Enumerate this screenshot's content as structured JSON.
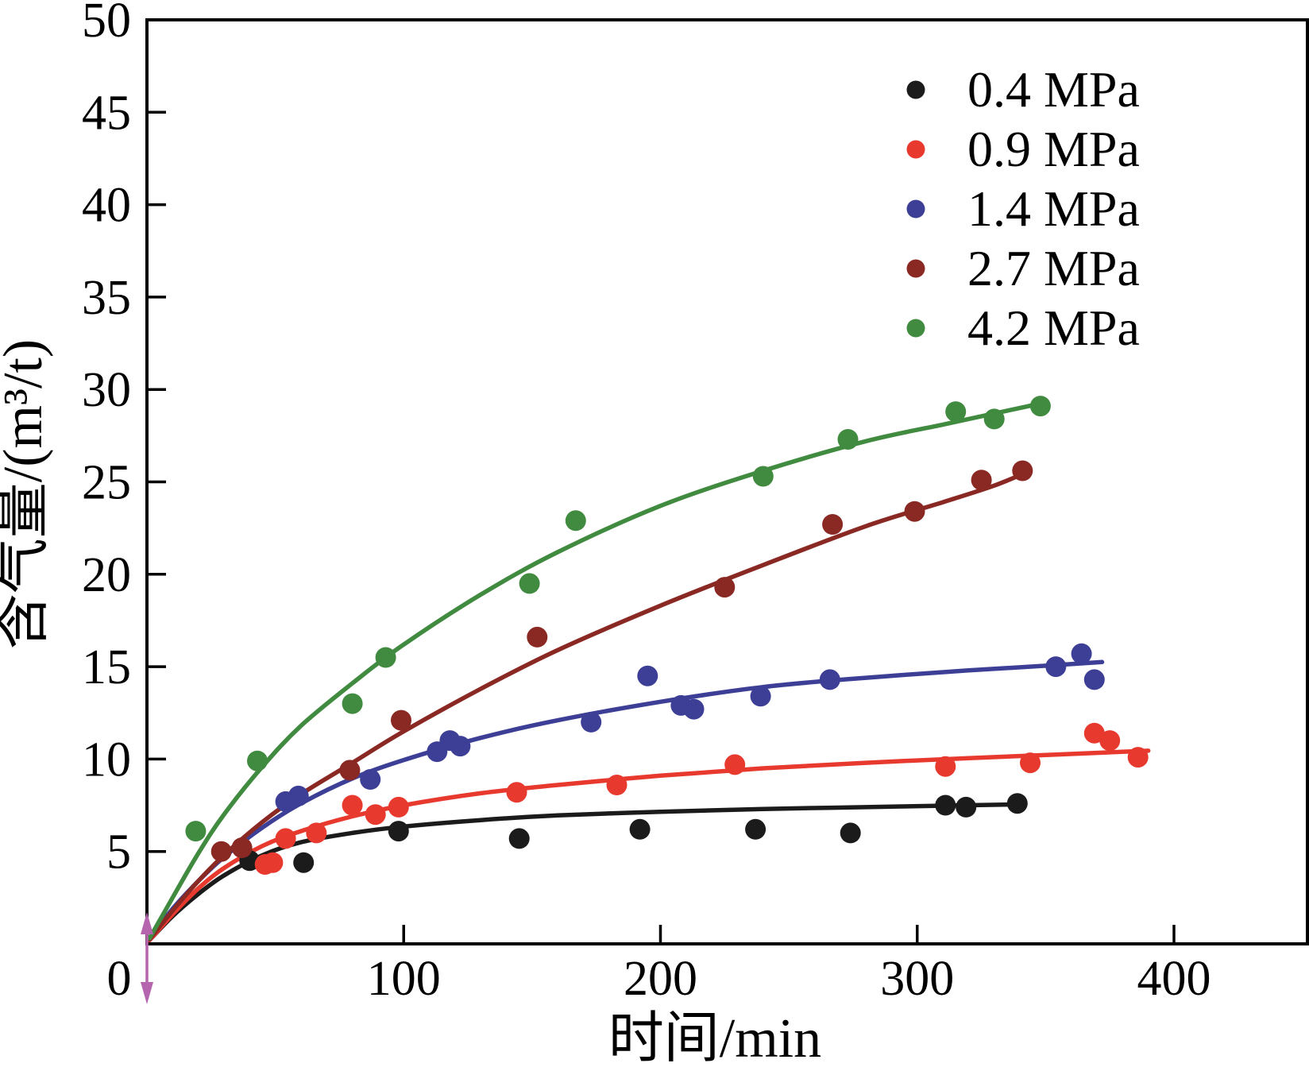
{
  "chart_data": {
    "type": "scatter",
    "title": "",
    "xlabel": "时间/min",
    "ylabel": "含气量/(m³/t)",
    "origin_label": "0",
    "xlim": [
      0,
      452
    ],
    "ylim": [
      0,
      50
    ],
    "x_ticks": [
      100,
      200,
      300,
      400
    ],
    "y_ticks": [
      5,
      10,
      15,
      20,
      25,
      30,
      35,
      40,
      45,
      50
    ],
    "grid": false,
    "legend_position": "upper-right-inside",
    "frame_color": "#000000",
    "origin_arrow_color": "#b564ae",
    "series": [
      {
        "name": "0.4 MPa",
        "color": "#1b1b1b",
        "points": [
          [
            40,
            4.5
          ],
          [
            61,
            4.4
          ],
          [
            98,
            6.1
          ],
          [
            145,
            5.7
          ],
          [
            192,
            6.2
          ],
          [
            237,
            6.2
          ],
          [
            274,
            6.0
          ],
          [
            311,
            7.5
          ],
          [
            319,
            7.4
          ],
          [
            339,
            7.6
          ]
        ],
        "fit_curve": [
          [
            1,
            0.2
          ],
          [
            10,
            1.5
          ],
          [
            20,
            2.7
          ],
          [
            30,
            3.7
          ],
          [
            45,
            4.8
          ],
          [
            60,
            5.5
          ],
          [
            80,
            6.0
          ],
          [
            100,
            6.35
          ],
          [
            130,
            6.7
          ],
          [
            160,
            6.95
          ],
          [
            200,
            7.15
          ],
          [
            240,
            7.3
          ],
          [
            280,
            7.4
          ],
          [
            320,
            7.5
          ],
          [
            341,
            7.55
          ]
        ]
      },
      {
        "name": "0.9 MPa",
        "color": "#e8392f",
        "points": [
          [
            46,
            4.3
          ],
          [
            49,
            4.4
          ],
          [
            54,
            5.7
          ],
          [
            66,
            6.0
          ],
          [
            80,
            7.5
          ],
          [
            89,
            7.0
          ],
          [
            98,
            7.4
          ],
          [
            144,
            8.2
          ],
          [
            183,
            8.6
          ],
          [
            229,
            9.7
          ],
          [
            311,
            9.6
          ],
          [
            344,
            9.8
          ],
          [
            369,
            11.4
          ],
          [
            375,
            11.0
          ],
          [
            386,
            10.1
          ]
        ],
        "fit_curve": [
          [
            1,
            0.2
          ],
          [
            10,
            1.6
          ],
          [
            20,
            3.0
          ],
          [
            30,
            4.1
          ],
          [
            45,
            5.3
          ],
          [
            60,
            6.1
          ],
          [
            80,
            6.9
          ],
          [
            100,
            7.5
          ],
          [
            130,
            8.15
          ],
          [
            160,
            8.6
          ],
          [
            200,
            9.1
          ],
          [
            240,
            9.5
          ],
          [
            280,
            9.8
          ],
          [
            320,
            10.05
          ],
          [
            355,
            10.25
          ],
          [
            390,
            10.45
          ]
        ]
      },
      {
        "name": "1.4 MPa",
        "color": "#3d3f96",
        "points": [
          [
            54,
            7.7
          ],
          [
            59,
            8.0
          ],
          [
            87,
            8.9
          ],
          [
            113,
            10.4
          ],
          [
            118,
            11.0
          ],
          [
            122,
            10.7
          ],
          [
            173,
            12.0
          ],
          [
            195,
            14.5
          ],
          [
            208,
            12.9
          ],
          [
            213,
            12.7
          ],
          [
            239,
            13.4
          ],
          [
            266,
            14.3
          ],
          [
            354,
            15.0
          ],
          [
            364,
            15.7
          ],
          [
            369,
            14.3
          ]
        ],
        "fit_curve": [
          [
            1,
            0.25
          ],
          [
            10,
            1.9
          ],
          [
            20,
            3.4
          ],
          [
            30,
            4.7
          ],
          [
            45,
            6.3
          ],
          [
            60,
            7.6
          ],
          [
            80,
            8.95
          ],
          [
            100,
            9.95
          ],
          [
            130,
            11.15
          ],
          [
            160,
            12.1
          ],
          [
            200,
            13.1
          ],
          [
            240,
            13.9
          ],
          [
            280,
            14.4
          ],
          [
            320,
            14.8
          ],
          [
            350,
            15.05
          ],
          [
            372,
            15.25
          ]
        ]
      },
      {
        "name": "2.7 MPa",
        "color": "#8a2823",
        "points": [
          [
            29,
            5.0
          ],
          [
            37,
            5.2
          ],
          [
            79,
            9.4
          ],
          [
            99,
            12.1
          ],
          [
            152,
            16.6
          ],
          [
            225,
            19.3
          ],
          [
            267,
            22.7
          ],
          [
            299,
            23.4
          ],
          [
            325,
            25.1
          ],
          [
            341,
            25.6
          ]
        ],
        "fit_curve": [
          [
            1,
            0.25
          ],
          [
            10,
            1.8
          ],
          [
            20,
            3.4
          ],
          [
            30,
            4.8
          ],
          [
            45,
            6.6
          ],
          [
            60,
            8.1
          ],
          [
            80,
            9.8
          ],
          [
            100,
            11.5
          ],
          [
            130,
            13.8
          ],
          [
            160,
            15.9
          ],
          [
            200,
            18.3
          ],
          [
            240,
            20.5
          ],
          [
            280,
            22.6
          ],
          [
            310,
            23.9
          ],
          [
            330,
            24.8
          ],
          [
            344,
            25.6
          ]
        ]
      },
      {
        "name": "4.2 MPa",
        "color": "#418b40",
        "points": [
          [
            19,
            6.1
          ],
          [
            43,
            9.9
          ],
          [
            80,
            13.0
          ],
          [
            93,
            15.5
          ],
          [
            149,
            19.5
          ],
          [
            167,
            22.9
          ],
          [
            240,
            25.3
          ],
          [
            273,
            27.3
          ],
          [
            315,
            28.8
          ],
          [
            330,
            28.4
          ],
          [
            348,
            29.1
          ]
        ],
        "fit_curve": [
          [
            1,
            0.3
          ],
          [
            10,
            2.5
          ],
          [
            20,
            4.9
          ],
          [
            30,
            7.0
          ],
          [
            45,
            9.6
          ],
          [
            60,
            11.8
          ],
          [
            80,
            14.1
          ],
          [
            100,
            16.2
          ],
          [
            130,
            18.9
          ],
          [
            160,
            21.2
          ],
          [
            200,
            23.7
          ],
          [
            240,
            25.6
          ],
          [
            280,
            27.2
          ],
          [
            310,
            28.1
          ],
          [
            330,
            28.7
          ],
          [
            350,
            29.3
          ]
        ]
      }
    ]
  }
}
